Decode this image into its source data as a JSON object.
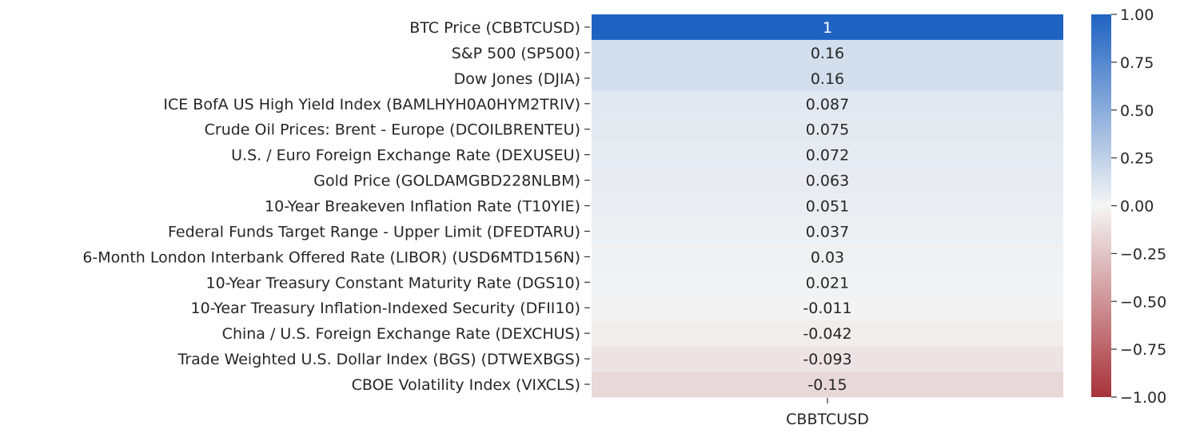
{
  "chart_data": {
    "type": "heatmap",
    "column_labels": [
      "CBBTCUSD"
    ],
    "row_labels": [
      "BTC Price (CBBTCUSD)",
      "S&P 500 (SP500)",
      "Dow Jones (DJIA)",
      "ICE BofA US High Yield Index (BAMLHYH0A0HYM2TRIV)",
      "Crude Oil Prices: Brent - Europe (DCOILBRENTEU)",
      "U.S. / Euro Foreign Exchange Rate (DEXUSEU)",
      "Gold Price (GOLDAMGBD228NLBM)",
      "10-Year Breakeven Inflation Rate (T10YIE)",
      "Federal Funds Target Range - Upper Limit (DFEDTARU)",
      "6-Month London Interbank Offered Rate (LIBOR) (USD6MTD156N)",
      "10-Year Treasury Constant Maturity Rate (DGS10)",
      "10-Year Treasury Inflation-Indexed Security (DFII10)",
      "China / U.S. Foreign Exchange Rate (DEXCHUS)",
      "Trade Weighted U.S. Dollar Index (BGS) (DTWEXBGS)",
      "CBOE Volatility Index (VIXCLS)"
    ],
    "values": [
      1,
      0.16,
      0.16,
      0.087,
      0.075,
      0.072,
      0.063,
      0.051,
      0.037,
      0.03,
      0.021,
      -0.011,
      -0.042,
      -0.093,
      -0.15
    ],
    "annotations": [
      "1",
      "0.16",
      "0.16",
      "0.087",
      "0.075",
      "0.072",
      "0.063",
      "0.051",
      "0.037",
      "0.03",
      "0.021",
      "-0.011",
      "-0.042",
      "-0.093",
      "-0.15"
    ],
    "colorbar": {
      "range": [
        -1,
        1
      ],
      "ticks": [
        1,
        0.75,
        0.5,
        0.25,
        0,
        -0.25,
        -0.5,
        -0.75,
        -1
      ],
      "tick_labels": [
        "1.00",
        "0.75",
        "0.50",
        "0.25",
        "0.00",
        "−0.25",
        "−0.50",
        "−0.75",
        "−1.00"
      ],
      "colors": {
        "negative": "#a8323a",
        "center": "#f5f5f5",
        "positive": "#1f63c2"
      }
    }
  }
}
